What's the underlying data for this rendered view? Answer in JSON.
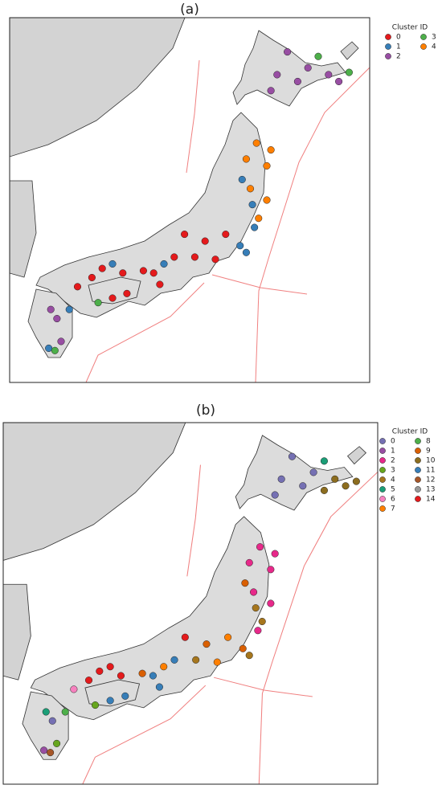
{
  "panels": [
    {
      "label": "(a)",
      "legend_title": "Cluster ID",
      "lon_range": [
        128.5,
        146
      ],
      "lat_range": [
        30,
        46
      ],
      "clusters": [
        {
          "name": "0",
          "color": "#e41a1c"
        },
        {
          "name": "1",
          "color": "#377eb8"
        },
        {
          "name": "2",
          "color": "#984ea3"
        },
        {
          "name": "3",
          "color": "#4daf4a"
        },
        {
          "name": "4",
          "color": "#ff7f00"
        }
      ],
      "points": [
        [
          142,
          44.5,
          2
        ],
        [
          143,
          43.8,
          2
        ],
        [
          144,
          43.5,
          2
        ],
        [
          142.5,
          43.2,
          2
        ],
        [
          141.5,
          43.5,
          2
        ],
        [
          144.5,
          43.2,
          2
        ],
        [
          141.2,
          42.8,
          2
        ],
        [
          145,
          43.6,
          3
        ],
        [
          143.5,
          44.3,
          3
        ],
        [
          140.5,
          40.5,
          4
        ],
        [
          141,
          39.5,
          4
        ],
        [
          140.2,
          38.5,
          4
        ],
        [
          141,
          38,
          4
        ],
        [
          140.6,
          37.2,
          4
        ],
        [
          140,
          39.8,
          4
        ],
        [
          141.2,
          40.2,
          4
        ],
        [
          140.3,
          37.8,
          1
        ],
        [
          139.8,
          38.9,
          1
        ],
        [
          140.4,
          36.8,
          1
        ],
        [
          139.7,
          36,
          1
        ],
        [
          140,
          35.7,
          1
        ],
        [
          139,
          36.5,
          0
        ],
        [
          138,
          36.2,
          0
        ],
        [
          137.5,
          35.5,
          0
        ],
        [
          138.5,
          35.4,
          0
        ],
        [
          137,
          36.5,
          0
        ],
        [
          136.5,
          35.5,
          0
        ],
        [
          135.5,
          34.8,
          0
        ],
        [
          135.8,
          34.3,
          0
        ],
        [
          135,
          34.9,
          0
        ],
        [
          136,
          35.2,
          1
        ],
        [
          133,
          35,
          0
        ],
        [
          132.5,
          34.6,
          0
        ],
        [
          134,
          34.8,
          0
        ],
        [
          131.8,
          34.2,
          0
        ],
        [
          133.5,
          35.2,
          1
        ],
        [
          133.5,
          33.7,
          0
        ],
        [
          134.2,
          33.9,
          0
        ],
        [
          132.8,
          33.5,
          3
        ],
        [
          130.8,
          32.8,
          2
        ],
        [
          131,
          31.8,
          2
        ],
        [
          130.5,
          33.2,
          2
        ],
        [
          131.4,
          33.2,
          1
        ],
        [
          130.4,
          31.5,
          1
        ],
        [
          130.7,
          31.4,
          3
        ]
      ]
    },
    {
      "label": "(b)",
      "legend_title": "Cluster ID",
      "lon_range": [
        128.5,
        146
      ],
      "lat_range": [
        30,
        46
      ],
      "clusters": [
        {
          "name": "0",
          "color": "#7570b3"
        },
        {
          "name": "1",
          "color": "#984ea3"
        },
        {
          "name": "2",
          "color": "#e7298a"
        },
        {
          "name": "3",
          "color": "#66a61e"
        },
        {
          "name": "4",
          "color": "#a6761d"
        },
        {
          "name": "5",
          "color": "#1b9e77"
        },
        {
          "name": "6",
          "color": "#f781bf"
        },
        {
          "name": "7",
          "color": "#ff7f00"
        },
        {
          "name": "8",
          "color": "#4daf4a"
        },
        {
          "name": "9",
          "color": "#d95f02"
        },
        {
          "name": "10",
          "color": "#8c6d1f"
        },
        {
          "name": "11",
          "color": "#377eb8"
        },
        {
          "name": "12",
          "color": "#a65628"
        },
        {
          "name": "13",
          "color": "#999999"
        },
        {
          "name": "14",
          "color": "#e41a1c"
        }
      ],
      "points": [
        [
          142,
          44.5,
          0
        ],
        [
          142.5,
          43.2,
          0
        ],
        [
          141.5,
          43.5,
          0
        ],
        [
          141.2,
          42.8,
          0
        ],
        [
          143,
          43.8,
          0
        ],
        [
          144,
          43.5,
          10
        ],
        [
          144.5,
          43.2,
          10
        ],
        [
          143.5,
          43,
          10
        ],
        [
          145,
          43.4,
          10
        ],
        [
          143.5,
          44.3,
          5
        ],
        [
          140.5,
          40.5,
          2
        ],
        [
          141,
          39.5,
          2
        ],
        [
          140.2,
          38.5,
          2
        ],
        [
          141,
          38,
          2
        ],
        [
          140,
          39.8,
          2
        ],
        [
          141.2,
          40.2,
          2
        ],
        [
          140.6,
          37.2,
          4
        ],
        [
          140.3,
          37.8,
          4
        ],
        [
          139.8,
          38.9,
          9
        ],
        [
          139.7,
          36,
          9
        ],
        [
          140,
          35.7,
          4
        ],
        [
          140.4,
          36.8,
          2
        ],
        [
          139,
          36.5,
          7
        ],
        [
          138,
          36.2,
          9
        ],
        [
          137,
          36.5,
          14
        ],
        [
          137.5,
          35.5,
          4
        ],
        [
          138.5,
          35.4,
          7
        ],
        [
          136.5,
          35.5,
          11
        ],
        [
          135.5,
          34.8,
          11
        ],
        [
          135.8,
          34.3,
          11
        ],
        [
          135,
          34.9,
          9
        ],
        [
          136,
          35.2,
          7
        ],
        [
          133,
          35,
          14
        ],
        [
          132.5,
          34.6,
          14
        ],
        [
          134,
          34.8,
          14
        ],
        [
          133.5,
          35.2,
          14
        ],
        [
          131.8,
          34.2,
          6
        ],
        [
          133.5,
          33.7,
          11
        ],
        [
          134.2,
          33.9,
          11
        ],
        [
          132.8,
          33.5,
          3
        ],
        [
          130.8,
          32.8,
          0
        ],
        [
          131,
          31.8,
          3
        ],
        [
          130.5,
          33.2,
          5
        ],
        [
          131.4,
          33.2,
          8
        ],
        [
          130.4,
          31.5,
          1
        ],
        [
          130.7,
          31.4,
          12
        ]
      ]
    }
  ]
}
